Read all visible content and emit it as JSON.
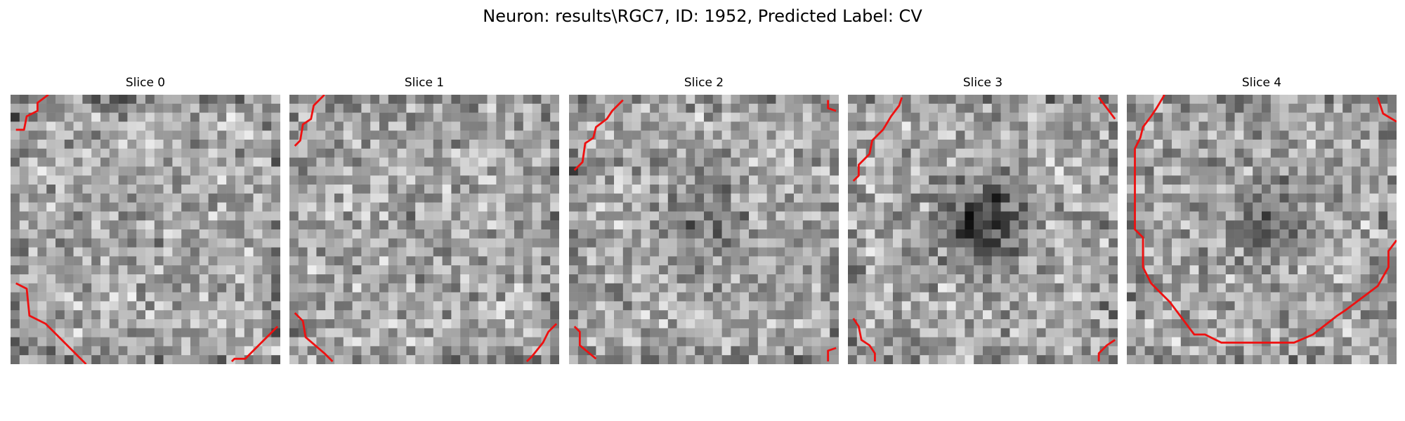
{
  "figure": {
    "title": "Neuron: results\\RGC7, ID: 1952, Predicted Label: CV"
  },
  "panels": [
    {
      "title": "Slice 0",
      "seed": 11,
      "blob_strength": 0.1
    },
    {
      "title": "Slice 1",
      "seed": 23,
      "blob_strength": 0.12
    },
    {
      "title": "Slice 2",
      "seed": 37,
      "blob_strength": 0.35
    },
    {
      "title": "Slice 3",
      "seed": 41,
      "blob_strength": 0.85
    },
    {
      "title": "Slice 4",
      "seed": 59,
      "blob_strength": 0.4
    }
  ],
  "colors": {
    "contour": "#ee1111",
    "colormap": "gray"
  }
}
